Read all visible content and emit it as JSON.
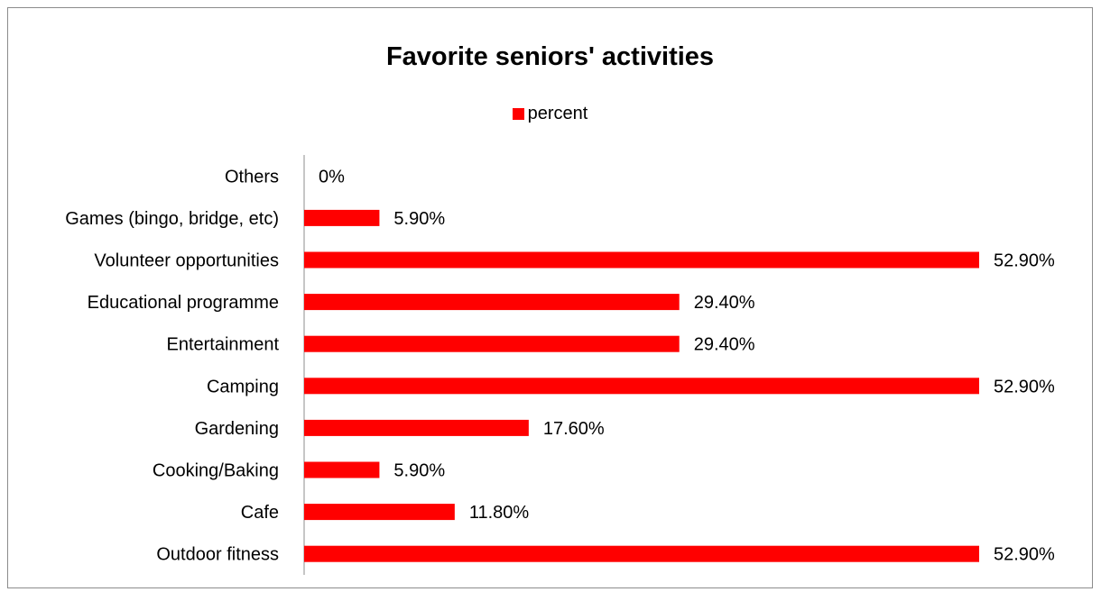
{
  "chart_data": {
    "type": "bar",
    "orientation": "horizontal",
    "title": "Favorite seniors' activities",
    "xlabel": "",
    "ylabel": "",
    "categories": [
      "Others",
      "Games (bingo, bridge, etc)",
      "Volunteer opportunities",
      "Educational programme",
      "Entertainment",
      "Camping",
      "Gardening",
      "Cooking/Baking",
      "Cafe",
      "Outdoor fitness"
    ],
    "series": [
      {
        "name": "percent",
        "values": [
          0,
          5.9,
          52.9,
          29.4,
          29.4,
          52.9,
          17.6,
          5.9,
          11.8,
          52.9
        ],
        "data_labels": [
          "0%",
          "5.90%",
          "52.90%",
          "29.40%",
          "29.40%",
          "52.90%",
          "17.60%",
          "5.90%",
          "11.80%",
          "52.90%"
        ],
        "color": "#ff0000"
      }
    ],
    "xlim": [
      0,
      52.9
    ],
    "grid": false,
    "legend_position": "top",
    "value_axis_visible": false
  }
}
